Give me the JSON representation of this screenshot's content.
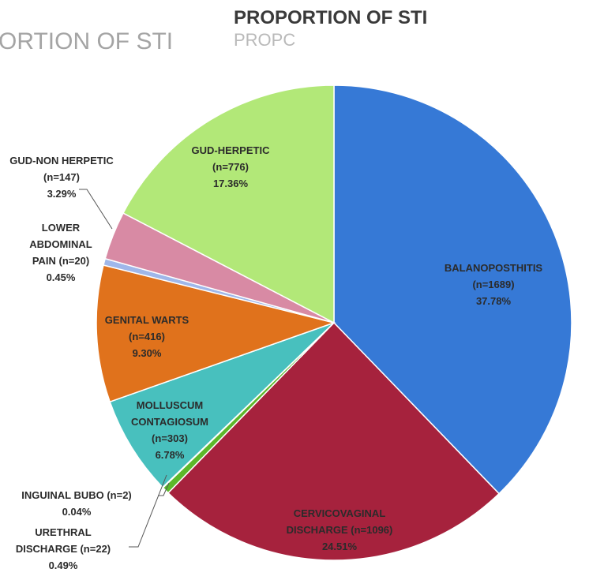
{
  "title": "PROPORTION OF STI",
  "ghost_title_left": "ORTION OF STI",
  "ghost_title_small": "PROPC",
  "chart_data": {
    "type": "pie",
    "title": "PROPORTION OF STI",
    "slices": [
      {
        "name": "BALANOPOSTHITIS",
        "n": 1689,
        "percent": 37.78,
        "color": "#3679d6",
        "label": [
          "BALANOPOSTHITIS",
          "(n=1689)",
          "37.78%"
        ],
        "label_color": "dark"
      },
      {
        "name": "CERVICOVAGINAL DISCHARGE",
        "n": 1096,
        "percent": 24.51,
        "color": "#a6223d",
        "label": [
          "CERVICOVAGINAL",
          "DISCHARGE (n=1096)",
          "24.51%"
        ],
        "label_color": "dark"
      },
      {
        "name": "URETHRAL DISCHARGE",
        "n": 22,
        "percent": 0.49,
        "color": "#5cb82a",
        "label": [
          "URETHRAL",
          "DISCHARGE (n=22)",
          "0.49%"
        ],
        "label_color": "dark"
      },
      {
        "name": "INGUINAL BUBO",
        "n": 2,
        "percent": 0.04,
        "color": "#2e4fa0",
        "label": [
          "INGUINAL BUBO (n=2)",
          "0.04%"
        ],
        "label_color": "dark"
      },
      {
        "name": "MOLLUSCUM CONTAGIOSUM",
        "n": 303,
        "percent": 6.78,
        "color": "#48c0be",
        "label": [
          "MOLLUSCUM",
          "CONTAGIOSUM",
          "(n=303)",
          "6.78%"
        ],
        "label_color": "dark"
      },
      {
        "name": "GENITAL WARTS",
        "n": 416,
        "percent": 9.3,
        "color": "#e0721c",
        "label": [
          "GENITAL WARTS",
          "(n=416)",
          "9.30%"
        ],
        "label_color": "dark"
      },
      {
        "name": "LOWER ABDOMINAL PAIN",
        "n": 20,
        "percent": 0.45,
        "color": "#9fb7ea",
        "label": [
          "LOWER",
          "ABDOMINAL",
          "PAIN (n=20)",
          "0.45%"
        ],
        "label_color": "dark"
      },
      {
        "name": "GUD-NON HERPETIC",
        "n": 147,
        "percent": 3.29,
        "color": "#d88aa4",
        "label": [
          "GUD-NON HERPETIC",
          "(n=147)",
          "3.29%"
        ],
        "label_color": "dark"
      },
      {
        "name": "GUD-HERPETIC",
        "n": 776,
        "percent": 17.36,
        "color": "#b2e878",
        "label": [
          "GUD-HERPETIC",
          "(n=776)",
          "17.36%"
        ],
        "label_color": "dark"
      }
    ]
  }
}
